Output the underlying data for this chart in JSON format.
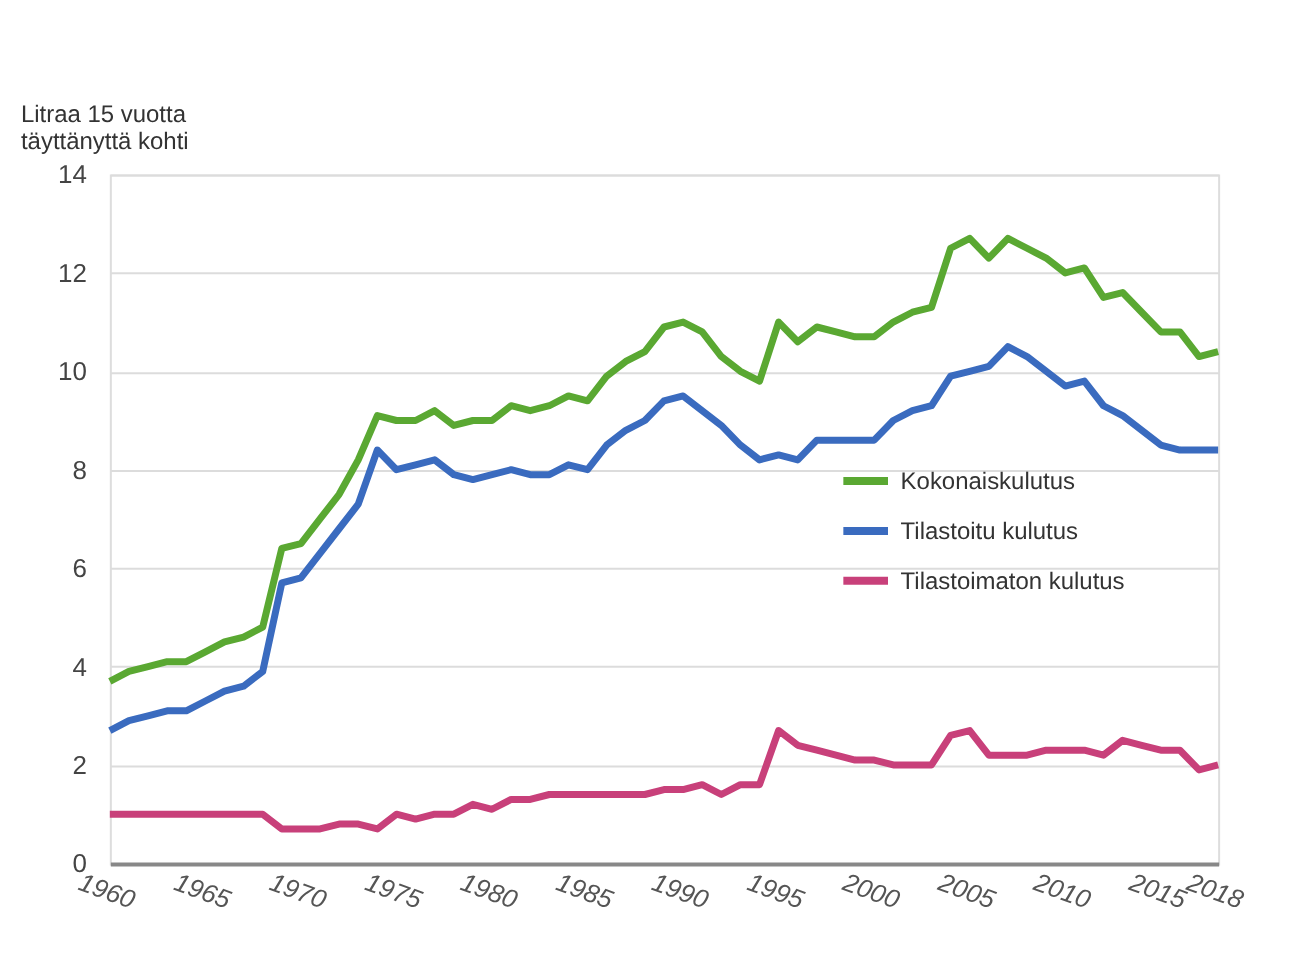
{
  "chart_data": {
    "type": "line",
    "ylabel": "Litraa 15 vuotta\ntäyttänyttä kohti",
    "x": [
      1960,
      1961,
      1962,
      1963,
      1964,
      1965,
      1966,
      1967,
      1968,
      1969,
      1970,
      1971,
      1972,
      1973,
      1974,
      1975,
      1976,
      1977,
      1978,
      1979,
      1980,
      1981,
      1982,
      1983,
      1984,
      1985,
      1986,
      1987,
      1988,
      1989,
      1990,
      1991,
      1992,
      1993,
      1994,
      1995,
      1996,
      1997,
      1998,
      1999,
      2000,
      2001,
      2002,
      2003,
      2004,
      2005,
      2006,
      2007,
      2008,
      2009,
      2010,
      2011,
      2012,
      2013,
      2014,
      2015,
      2016,
      2017,
      2018
    ],
    "series": [
      {
        "name": "Kokonaiskulutus",
        "color": "#5aa832",
        "values": [
          3.7,
          3.9,
          4.0,
          4.1,
          4.1,
          4.3,
          4.5,
          4.6,
          4.8,
          6.4,
          6.5,
          7.0,
          7.5,
          8.2,
          9.1,
          9.0,
          9.0,
          9.2,
          8.9,
          9.0,
          9.0,
          9.3,
          9.2,
          9.3,
          9.5,
          9.4,
          9.9,
          10.2,
          10.4,
          10.9,
          11.0,
          10.8,
          10.3,
          10.0,
          9.8,
          11.0,
          10.6,
          10.9,
          10.8,
          10.7,
          10.7,
          11.0,
          11.2,
          11.3,
          12.5,
          12.7,
          12.3,
          12.7,
          12.5,
          12.3,
          12.0,
          12.1,
          11.5,
          11.6,
          11.2,
          10.8,
          10.8,
          10.3,
          10.4
        ]
      },
      {
        "name": "Tilastoitu kulutus",
        "color": "#3a6bbf",
        "values": [
          2.7,
          2.9,
          3.0,
          3.1,
          3.1,
          3.3,
          3.5,
          3.6,
          3.9,
          5.7,
          5.8,
          6.3,
          6.8,
          7.3,
          8.4,
          8.0,
          8.1,
          8.2,
          7.9,
          7.8,
          7.9,
          8.0,
          7.9,
          7.9,
          8.1,
          8.0,
          8.5,
          8.8,
          9.0,
          9.4,
          9.5,
          9.2,
          8.9,
          8.5,
          8.2,
          8.3,
          8.2,
          8.6,
          8.6,
          8.6,
          8.6,
          9.0,
          9.2,
          9.3,
          9.9,
          10.0,
          10.1,
          10.5,
          10.3,
          10.0,
          9.7,
          9.8,
          9.3,
          9.1,
          8.8,
          8.5,
          8.4,
          8.4,
          8.4
        ]
      },
      {
        "name": "Tilastoimaton kulutus",
        "color": "#c8407a",
        "values": [
          1.0,
          1.0,
          1.0,
          1.0,
          1.0,
          1.0,
          1.0,
          1.0,
          1.0,
          0.7,
          0.7,
          0.7,
          0.8,
          0.8,
          0.7,
          1.0,
          0.9,
          1.0,
          1.0,
          1.2,
          1.1,
          1.3,
          1.3,
          1.4,
          1.4,
          1.4,
          1.4,
          1.4,
          1.4,
          1.5,
          1.5,
          1.6,
          1.4,
          1.6,
          1.6,
          2.7,
          2.4,
          2.3,
          2.2,
          2.1,
          2.1,
          2.0,
          2.0,
          2.0,
          2.6,
          2.7,
          2.2,
          2.2,
          2.2,
          2.3,
          2.3,
          2.3,
          2.2,
          2.5,
          2.4,
          2.3,
          2.3,
          1.9,
          2.0
        ]
      }
    ],
    "xlim": [
      1960,
      2018
    ],
    "xticks": [
      1960,
      1965,
      1970,
      1975,
      1980,
      1985,
      1990,
      1995,
      2000,
      2005,
      2010,
      2015,
      2018
    ],
    "ylim": [
      0,
      14
    ],
    "yticks": [
      0,
      2,
      4,
      6,
      8,
      10,
      12,
      14
    ],
    "grid": "y",
    "legend": "right",
    "marker": "none",
    "line_style": "solid"
  }
}
